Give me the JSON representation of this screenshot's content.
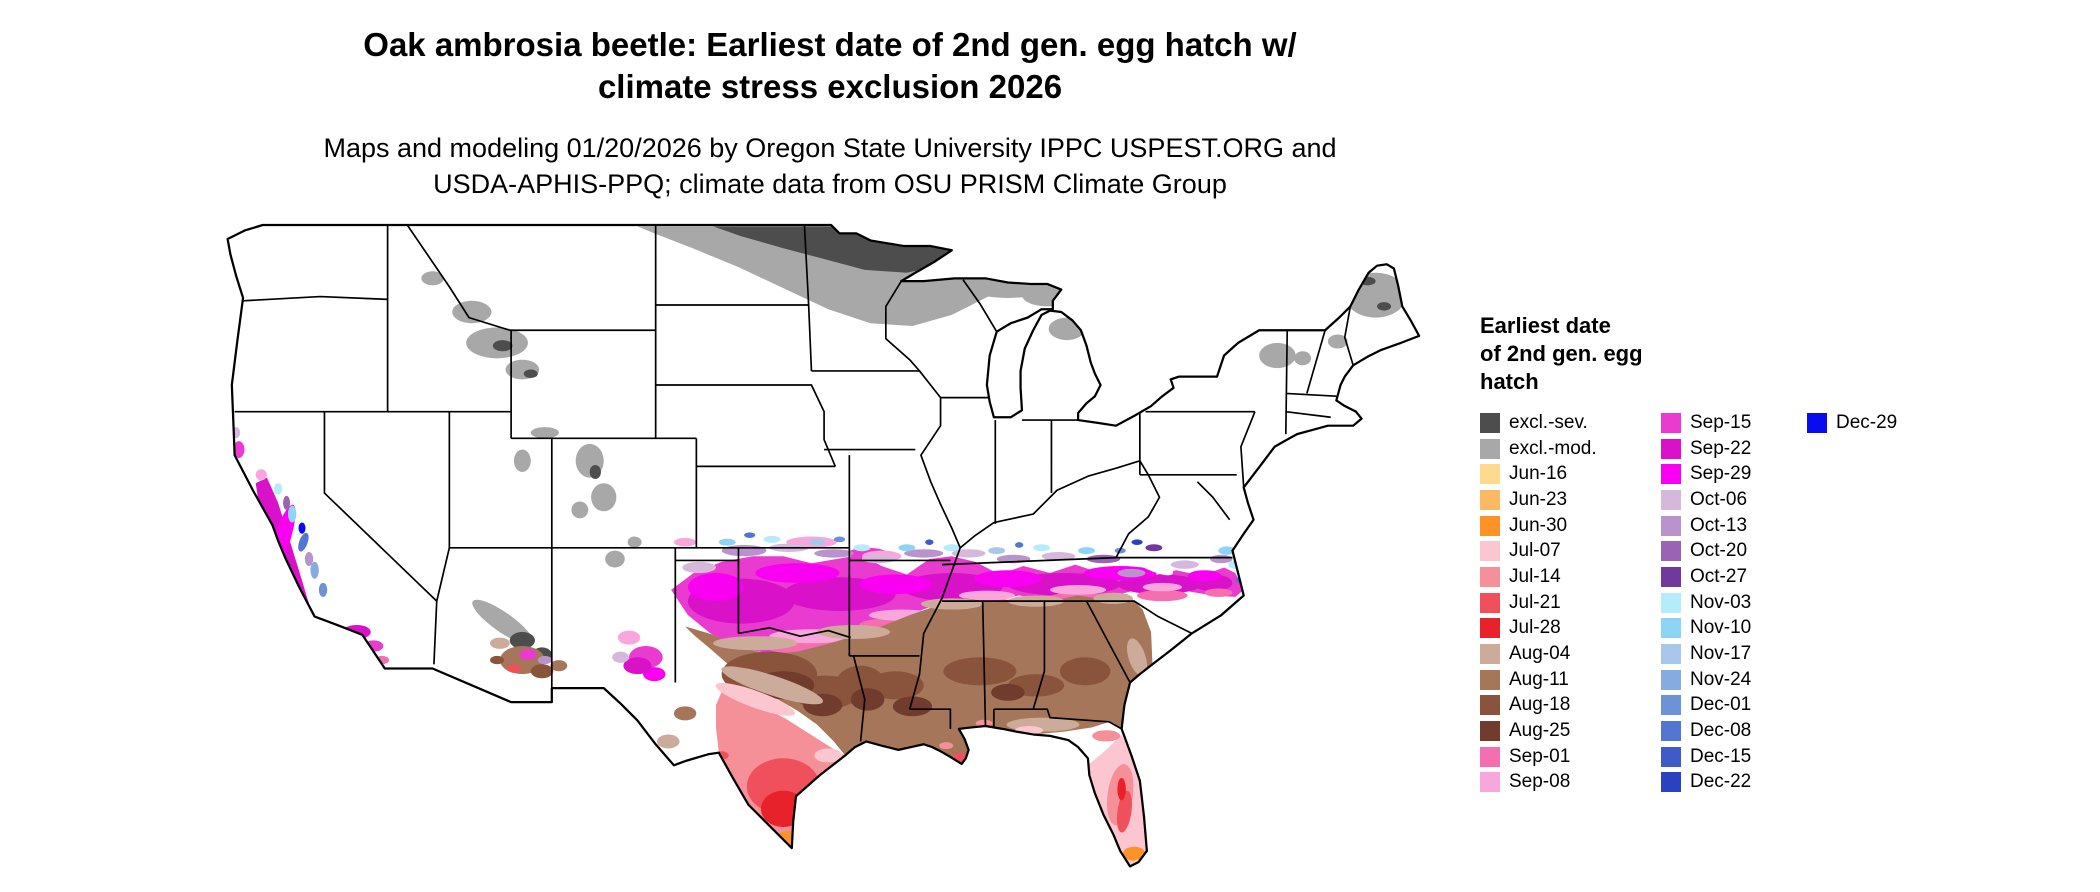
{
  "title": {
    "line1": "Oak ambrosia beetle: Earliest date of 2nd gen. egg hatch w/",
    "line2": "climate stress exclusion 2026"
  },
  "subtitle": {
    "line1": "Maps and modeling 01/20/2026 by Oregon State University IPPC USPEST.ORG and",
    "line2": "USDA-APHIS-PPQ; climate data from OSU PRISM Climate Group"
  },
  "legend": {
    "title_lines": [
      "Earliest date",
      "of 2nd gen. egg",
      "hatch"
    ],
    "columns": [
      [
        {
          "label": "excl.-sev.",
          "color": "#4d4d4d"
        },
        {
          "label": "excl.-mod.",
          "color": "#a8a8a8"
        },
        {
          "label": "Jun-16",
          "color": "#fed98e"
        },
        {
          "label": "Jun-23",
          "color": "#fdb863"
        },
        {
          "label": "Jun-30",
          "color": "#fd9326"
        },
        {
          "label": "Jul-07",
          "color": "#fbc6cf"
        },
        {
          "label": "Jul-14",
          "color": "#f58f98"
        },
        {
          "label": "Jul-21",
          "color": "#f0505c"
        },
        {
          "label": "Jul-28",
          "color": "#e8222a"
        },
        {
          "label": "Aug-04",
          "color": "#ccab9b"
        },
        {
          "label": "Aug-11",
          "color": "#a5765a"
        },
        {
          "label": "Aug-18",
          "color": "#8a543c"
        },
        {
          "label": "Aug-25",
          "color": "#713c2d"
        },
        {
          "label": "Sep-01",
          "color": "#f46eb0"
        },
        {
          "label": "Sep-08",
          "color": "#f9a6dc"
        }
      ],
      [
        {
          "label": "Sep-15",
          "color": "#ea3bd0"
        },
        {
          "label": "Sep-22",
          "color": "#d911c9"
        },
        {
          "label": "Sep-29",
          "color": "#fa00f2"
        },
        {
          "label": "Oct-06",
          "color": "#d5b8dc"
        },
        {
          "label": "Oct-13",
          "color": "#bb93cc"
        },
        {
          "label": "Oct-20",
          "color": "#9a63b4"
        },
        {
          "label": "Oct-27",
          "color": "#71399b"
        },
        {
          "label": "Nov-03",
          "color": "#b5ecfb"
        },
        {
          "label": "Nov-10",
          "color": "#8ed5f5"
        },
        {
          "label": "Nov-17",
          "color": "#a9c7ea"
        },
        {
          "label": "Nov-24",
          "color": "#86abe0"
        },
        {
          "label": "Dec-01",
          "color": "#6e92d6"
        },
        {
          "label": "Dec-08",
          "color": "#5377d0"
        },
        {
          "label": "Dec-15",
          "color": "#3d5cc9"
        },
        {
          "label": "Dec-22",
          "color": "#2a41c0"
        }
      ],
      [
        {
          "label": "Dec-29",
          "color": "#0b0bf0"
        }
      ]
    ]
  }
}
